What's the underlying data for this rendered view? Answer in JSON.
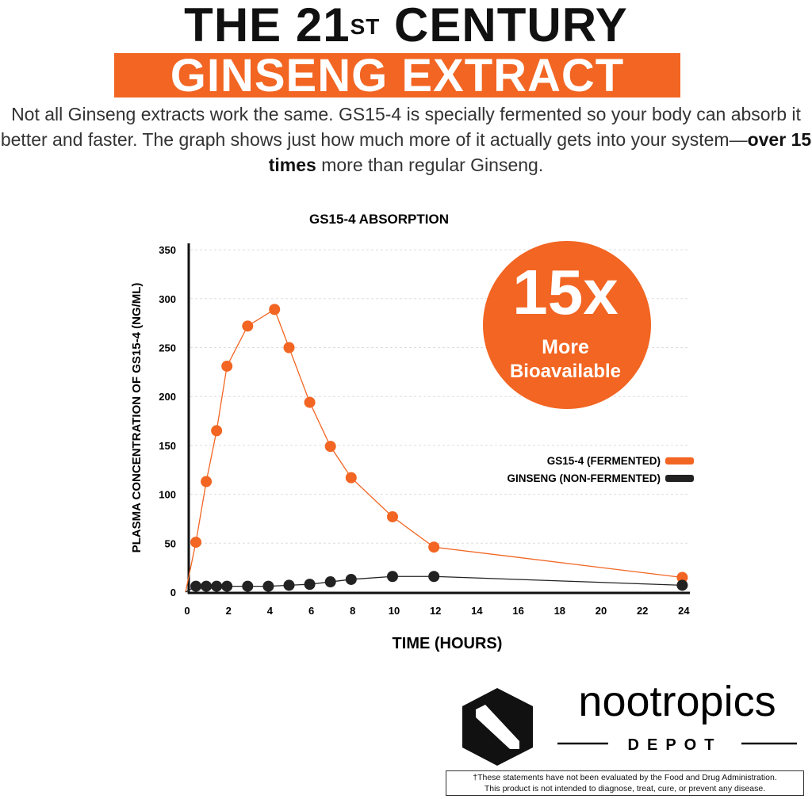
{
  "header": {
    "line1": "THE 21",
    "line1_sup": "ST",
    "line1_rest": " CENTURY",
    "banner": "GINSENG EXTRACT"
  },
  "intro": {
    "part1": "Not all Ginseng extracts work the same. GS15-4 is specially fermented so your body can absorb it better and faster. The graph shows just how much more of it actually gets into your system—",
    "bold": "over 15 times",
    "part2": " more than regular Ginseng."
  },
  "badge": {
    "big": "15x",
    "line1": "More",
    "line2": "Bioavailable"
  },
  "brand": {
    "name": "nootropics",
    "sub": "DEPOT"
  },
  "disclaimer": {
    "line1": "†These statements have not been evaluated by the Food and Drug Administration.",
    "line2": "This product is not intended to diagnose, treat, cure, or prevent any disease."
  },
  "colors": {
    "accent": "#f26522",
    "dark": "#222222"
  },
  "chart_data": {
    "type": "line",
    "title": "GS15-4 ABSORPTION",
    "xlabel": "TIME (HOURS)",
    "ylabel": "PLASMA CONCENTRATION OF GS15-4 (NG/ML)",
    "xlim": [
      0,
      24
    ],
    "ylim": [
      0,
      350
    ],
    "xticks": [
      0,
      2,
      4,
      6,
      8,
      10,
      12,
      14,
      16,
      18,
      20,
      22,
      24
    ],
    "yticks": [
      0,
      50,
      100,
      150,
      200,
      250,
      300,
      350
    ],
    "grid": "horizontal dashed",
    "legend": "right",
    "series": [
      {
        "name": "GS15-4 (FERMENTED)",
        "color": "#f26522",
        "x": [
          0,
          0.5,
          1,
          1.5,
          2,
          3,
          4.3,
          5,
          6,
          7,
          8,
          10,
          12,
          24
        ],
        "y": [
          0,
          51,
          113,
          165,
          231,
          272,
          289,
          250,
          194,
          149,
          117,
          77,
          46,
          15
        ]
      },
      {
        "name": "GINSENG (NON-FERMENTED)",
        "color": "#222222",
        "x": [
          0,
          0.5,
          1,
          1.5,
          2,
          3,
          4,
          5,
          6,
          7,
          8,
          10,
          12,
          24
        ],
        "y": [
          0,
          6,
          6,
          6,
          6,
          6,
          6,
          7,
          8,
          10.5,
          13,
          16,
          16,
          7
        ]
      }
    ]
  }
}
